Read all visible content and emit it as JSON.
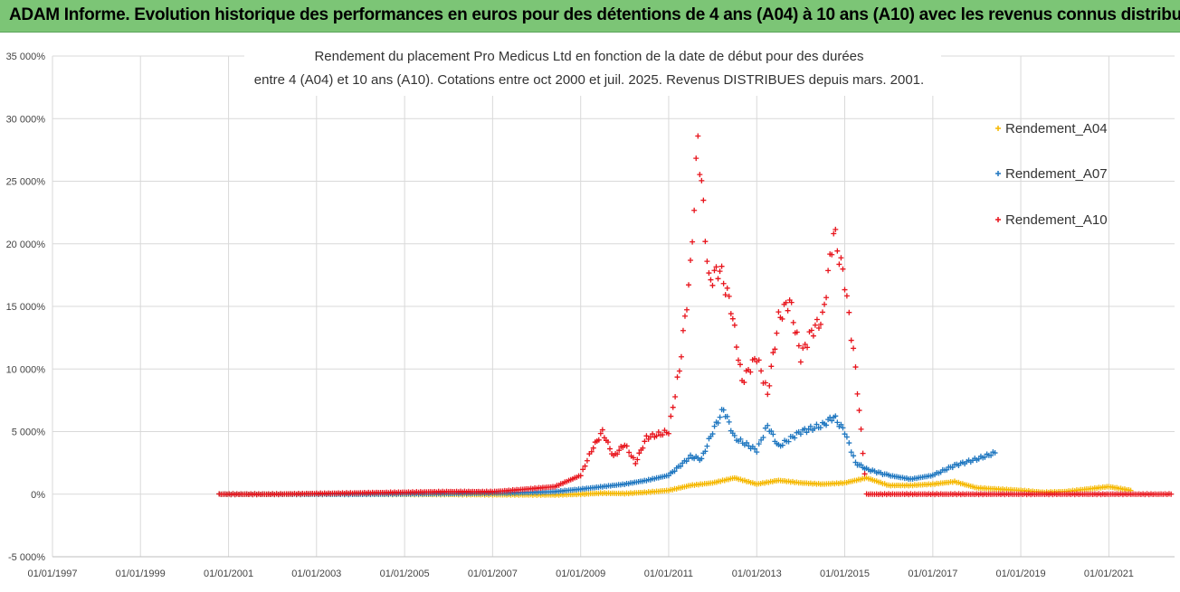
{
  "banner": {
    "title": "ADAM Informe. Evolution historique des performances en euros pour des détentions de 4 ans (A04) à 10 ans (A10) avec les revenus connus distribués",
    "color": "#7cc576"
  },
  "chart_data": {
    "type": "scatter",
    "title": "Rendement du placement Pro Medicus Ltd en fonction de la date de début pour des durées",
    "subtitle": "entre 4 (A04) et 10 ans (A10). Cotations entre oct 2000 et juil. 2025. Revenus DISTRIBUES depuis mars. 2001.",
    "xlabel": "",
    "ylabel": "",
    "xlim": [
      "1997-01-01",
      "2022-06-30"
    ],
    "ylim": [
      -5000,
      35000
    ],
    "y_ticks": [
      -5000,
      0,
      5000,
      10000,
      15000,
      20000,
      25000,
      30000,
      35000
    ],
    "y_tick_labels": [
      "-5 000%",
      "0%",
      "5 000%",
      "10 000%",
      "15 000%",
      "20 000%",
      "25 000%",
      "30 000%",
      "35 000%"
    ],
    "x_ticks": [
      "1997-01-01",
      "1999-01-01",
      "2001-01-01",
      "2003-01-01",
      "2005-01-01",
      "2007-01-01",
      "2009-01-01",
      "2011-01-01",
      "2013-01-01",
      "2015-01-01",
      "2017-01-01",
      "2019-01-01",
      "2021-01-01"
    ],
    "x_tick_labels": [
      "01/01/1997",
      "01/01/1999",
      "01/01/2001",
      "01/01/2003",
      "01/01/2005",
      "01/01/2007",
      "01/01/2009",
      "01/01/2011",
      "01/01/2013",
      "01/01/2015",
      "01/01/2017",
      "01/01/2019",
      "01/01/2021"
    ],
    "grid": true,
    "legend_position": "right",
    "series": [
      {
        "name": "Rendement_A04",
        "color": "#f5b800",
        "marker": "+",
        "points": [
          [
            "2000-10-15",
            0
          ],
          [
            "2002-01-01",
            0
          ],
          [
            "2004-01-01",
            0
          ],
          [
            "2006-01-01",
            -20
          ],
          [
            "2007-06-01",
            -50
          ],
          [
            "2008-06-01",
            -60
          ],
          [
            "2009-01-01",
            0
          ],
          [
            "2009-07-01",
            80
          ],
          [
            "2010-01-01",
            50
          ],
          [
            "2010-07-01",
            150
          ],
          [
            "2011-01-01",
            300
          ],
          [
            "2011-07-01",
            700
          ],
          [
            "2012-01-01",
            900
          ],
          [
            "2012-07-01",
            1300
          ],
          [
            "2013-01-01",
            800
          ],
          [
            "2013-07-01",
            1100
          ],
          [
            "2014-01-01",
            900
          ],
          [
            "2014-07-01",
            800
          ],
          [
            "2015-01-01",
            900
          ],
          [
            "2015-07-01",
            1300
          ],
          [
            "2016-01-01",
            700
          ],
          [
            "2016-07-01",
            700
          ],
          [
            "2017-01-01",
            800
          ],
          [
            "2017-07-01",
            1000
          ],
          [
            "2018-01-01",
            500
          ],
          [
            "2018-07-01",
            400
          ],
          [
            "2019-01-01",
            300
          ],
          [
            "2019-07-01",
            150
          ],
          [
            "2020-01-01",
            200
          ],
          [
            "2020-07-01",
            400
          ],
          [
            "2021-01-01",
            600
          ],
          [
            "2021-07-01",
            300
          ]
        ]
      },
      {
        "name": "Rendement_A07",
        "color": "#1f77c0",
        "marker": "+",
        "points": [
          [
            "2000-10-15",
            0
          ],
          [
            "2002-01-01",
            0
          ],
          [
            "2004-01-01",
            0
          ],
          [
            "2006-01-01",
            50
          ],
          [
            "2007-06-01",
            100
          ],
          [
            "2008-06-01",
            200
          ],
          [
            "2009-01-01",
            400
          ],
          [
            "2009-07-01",
            600
          ],
          [
            "2010-01-01",
            800
          ],
          [
            "2010-07-01",
            1100
          ],
          [
            "2011-01-01",
            1500
          ],
          [
            "2011-07-01",
            3000
          ],
          [
            "2011-10-01",
            2800
          ],
          [
            "2012-01-01",
            5000
          ],
          [
            "2012-04-01",
            6800
          ],
          [
            "2012-07-01",
            4500
          ],
          [
            "2013-01-01",
            3500
          ],
          [
            "2013-04-01",
            5500
          ],
          [
            "2013-07-01",
            3800
          ],
          [
            "2014-01-01",
            5000
          ],
          [
            "2014-07-01",
            5500
          ],
          [
            "2014-10-01",
            6200
          ],
          [
            "2015-01-01",
            5000
          ],
          [
            "2015-04-01",
            2500
          ],
          [
            "2015-07-01",
            2000
          ],
          [
            "2016-01-01",
            1500
          ],
          [
            "2016-07-01",
            1200
          ],
          [
            "2017-01-01",
            1500
          ],
          [
            "2017-07-01",
            2300
          ],
          [
            "2018-01-01",
            2800
          ],
          [
            "2018-06-01",
            3300
          ]
        ]
      },
      {
        "name": "Rendement_A10",
        "color": "#e8141c",
        "marker": "+",
        "points": [
          [
            "2000-10-15",
            0
          ],
          [
            "2002-01-01",
            0
          ],
          [
            "2004-01-01",
            100
          ],
          [
            "2006-01-01",
            200
          ],
          [
            "2007-01-01",
            200
          ],
          [
            "2007-06-01",
            300
          ],
          [
            "2008-06-01",
            600
          ],
          [
            "2009-01-01",
            1500
          ],
          [
            "2009-04-01",
            3500
          ],
          [
            "2009-07-01",
            5000
          ],
          [
            "2009-10-01",
            3000
          ],
          [
            "2010-01-01",
            4000
          ],
          [
            "2010-04-01",
            2500
          ],
          [
            "2010-07-01",
            4500
          ],
          [
            "2011-01-01",
            5000
          ],
          [
            "2011-04-01",
            10000
          ],
          [
            "2011-07-01",
            18000
          ],
          [
            "2011-09-01",
            28500
          ],
          [
            "2011-12-01",
            17000
          ],
          [
            "2012-03-01",
            18000
          ],
          [
            "2012-06-01",
            15000
          ],
          [
            "2012-09-01",
            9000
          ],
          [
            "2013-01-01",
            11000
          ],
          [
            "2013-04-01",
            8000
          ],
          [
            "2013-07-01",
            14000
          ],
          [
            "2013-10-01",
            15500
          ],
          [
            "2014-01-01",
            11000
          ],
          [
            "2014-04-01",
            13000
          ],
          [
            "2014-07-01",
            14000
          ],
          [
            "2014-10-01",
            21000
          ],
          [
            "2015-01-01",
            17000
          ],
          [
            "2015-04-01",
            10000
          ],
          [
            "2015-07-01",
            0
          ],
          [
            "2017-01-01",
            0
          ],
          [
            "2019-01-01",
            0
          ],
          [
            "2021-01-01",
            0
          ],
          [
            "2022-06-01",
            0
          ]
        ]
      }
    ]
  }
}
